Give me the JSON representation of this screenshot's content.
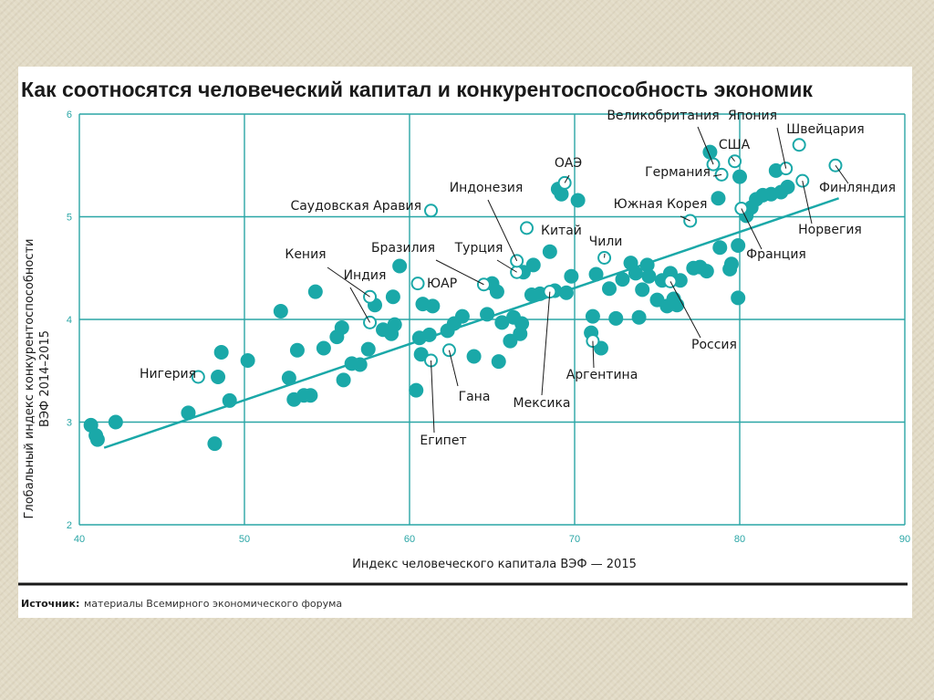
{
  "chart_data": {
    "type": "scatter",
    "title": "Как соотносятся человеческий капитал и конкурентоспособность экономик",
    "xlabel": "Индекс человеческого капитала ВЭФ — 2015",
    "ylabel_line1": "Глобальный индекс конкурентоспособности",
    "ylabel_line2": "ВЭФ 2014–2015",
    "xlim": [
      40,
      90
    ],
    "ylim": [
      2,
      6
    ],
    "xticks": [
      "40",
      "50",
      "60",
      "70",
      "80",
      "90"
    ],
    "yticks": [
      "2",
      "3",
      "4",
      "5",
      "6"
    ],
    "grid": true,
    "colors": {
      "point": "#1aa8a8",
      "grid": "#2aa6a6",
      "trend": "#1aa8a8",
      "text": "#1a1a1a"
    },
    "trendline": {
      "x1": 41.5,
      "y1": 2.75,
      "x2": 86,
      "y2": 5.18
    },
    "labeled_points": [
      {
        "name": "Нигерия",
        "x": 47.2,
        "y": 3.44
      },
      {
        "name": "Кения",
        "x": 57.6,
        "y": 4.22
      },
      {
        "name": "Индия",
        "x": 57.6,
        "y": 3.97
      },
      {
        "name": "Саудовская Аравия",
        "x": 61.3,
        "y": 5.06
      },
      {
        "name": "Бразилия",
        "x": 64.5,
        "y": 4.34
      },
      {
        "name": "ЮАР",
        "x": 60.5,
        "y": 4.35
      },
      {
        "name": "Египет",
        "x": 61.3,
        "y": 3.6
      },
      {
        "name": "Гана",
        "x": 62.4,
        "y": 3.7
      },
      {
        "name": "Мексика",
        "x": 68.5,
        "y": 4.27
      },
      {
        "name": "Аргентина",
        "x": 71.1,
        "y": 3.79
      },
      {
        "name": "Турция",
        "x": 66.5,
        "y": 4.46
      },
      {
        "name": "Индонезия",
        "x": 66.5,
        "y": 4.57
      },
      {
        "name": "ОАЭ",
        "x": 69.4,
        "y": 5.33
      },
      {
        "name": "Китай",
        "x": 67.1,
        "y": 4.89
      },
      {
        "name": "Чили",
        "x": 71.8,
        "y": 4.6
      },
      {
        "name": "Россия",
        "x": 75.8,
        "y": 4.37
      },
      {
        "name": "Южная Корея",
        "x": 77.0,
        "y": 4.96
      },
      {
        "name": "Великобритания",
        "x": 78.4,
        "y": 5.51
      },
      {
        "name": "Германия",
        "x": 78.9,
        "y": 5.41
      },
      {
        "name": "США",
        "x": 79.7,
        "y": 5.54
      },
      {
        "name": "Франция",
        "x": 80.1,
        "y": 5.08
      },
      {
        "name": "Япония",
        "x": 82.8,
        "y": 5.47
      },
      {
        "name": "Швейцария",
        "x": 83.6,
        "y": 5.7
      },
      {
        "name": "Финляндия",
        "x": 85.8,
        "y": 5.5
      },
      {
        "name": "Норвегия",
        "x": 83.8,
        "y": 5.35
      }
    ],
    "points": [
      [
        40.7,
        2.97
      ],
      [
        41.0,
        2.87
      ],
      [
        42.2,
        3.0
      ],
      [
        41.1,
        2.83
      ],
      [
        46.6,
        3.09
      ],
      [
        48.2,
        2.79
      ],
      [
        48.4,
        3.44
      ],
      [
        48.6,
        3.68
      ],
      [
        49.1,
        3.21
      ],
      [
        50.2,
        3.6
      ],
      [
        52.2,
        4.08
      ],
      [
        52.7,
        3.43
      ],
      [
        53.0,
        3.22
      ],
      [
        53.2,
        3.7
      ],
      [
        53.6,
        3.26
      ],
      [
        54.0,
        3.26
      ],
      [
        54.3,
        4.27
      ],
      [
        54.8,
        3.72
      ],
      [
        55.6,
        3.83
      ],
      [
        55.9,
        3.92
      ],
      [
        56.0,
        3.41
      ],
      [
        56.5,
        3.57
      ],
      [
        57.0,
        3.56
      ],
      [
        57.5,
        3.71
      ],
      [
        57.9,
        4.14
      ],
      [
        58.4,
        3.9
      ],
      [
        58.9,
        3.86
      ],
      [
        59.0,
        4.22
      ],
      [
        59.1,
        3.95
      ],
      [
        59.4,
        4.52
      ],
      [
        60.4,
        3.31
      ],
      [
        60.6,
        3.82
      ],
      [
        60.7,
        3.66
      ],
      [
        60.8,
        4.15
      ],
      [
        61.2,
        3.85
      ],
      [
        61.4,
        4.13
      ],
      [
        62.3,
        3.89
      ],
      [
        62.7,
        3.96
      ],
      [
        63.2,
        4.03
      ],
      [
        63.9,
        3.64
      ],
      [
        64.7,
        4.05
      ],
      [
        65.0,
        4.35
      ],
      [
        65.3,
        4.27
      ],
      [
        65.4,
        3.59
      ],
      [
        65.6,
        3.97
      ],
      [
        66.1,
        3.79
      ],
      [
        66.3,
        4.02
      ],
      [
        66.7,
        3.86
      ],
      [
        66.8,
        3.96
      ],
      [
        66.9,
        4.46
      ],
      [
        67.4,
        4.24
      ],
      [
        67.5,
        4.53
      ],
      [
        67.9,
        4.25
      ],
      [
        68.5,
        4.66
      ],
      [
        68.8,
        4.28
      ],
      [
        69.0,
        5.27
      ],
      [
        69.2,
        5.22
      ],
      [
        69.5,
        4.26
      ],
      [
        69.8,
        4.42
      ],
      [
        70.2,
        5.16
      ],
      [
        71.0,
        3.87
      ],
      [
        71.1,
        4.03
      ],
      [
        71.3,
        4.44
      ],
      [
        71.6,
        3.72
      ],
      [
        72.1,
        4.3
      ],
      [
        72.5,
        4.01
      ],
      [
        72.9,
        4.39
      ],
      [
        73.4,
        4.55
      ],
      [
        73.7,
        4.45
      ],
      [
        73.9,
        4.02
      ],
      [
        74.1,
        4.29
      ],
      [
        74.4,
        4.53
      ],
      [
        74.5,
        4.42
      ],
      [
        75.0,
        4.19
      ],
      [
        75.3,
        4.38
      ],
      [
        75.6,
        4.13
      ],
      [
        75.8,
        4.45
      ],
      [
        76.0,
        4.2
      ],
      [
        76.2,
        4.14
      ],
      [
        76.4,
        4.38
      ],
      [
        77.2,
        4.5
      ],
      [
        77.6,
        4.51
      ],
      [
        78.0,
        4.47
      ],
      [
        78.2,
        5.63
      ],
      [
        78.7,
        5.18
      ],
      [
        78.8,
        4.7
      ],
      [
        79.4,
        4.49
      ],
      [
        79.5,
        4.54
      ],
      [
        79.9,
        4.21
      ],
      [
        79.9,
        4.72
      ],
      [
        80.0,
        5.39
      ],
      [
        80.4,
        5.01
      ],
      [
        80.7,
        5.09
      ],
      [
        81.0,
        5.17
      ],
      [
        81.4,
        5.21
      ],
      [
        81.9,
        5.22
      ],
      [
        82.2,
        5.45
      ],
      [
        82.5,
        5.24
      ],
      [
        82.9,
        5.29
      ]
    ]
  },
  "source": {
    "label": "Источник:",
    "text": "материалы Всемирного экономического форума"
  }
}
